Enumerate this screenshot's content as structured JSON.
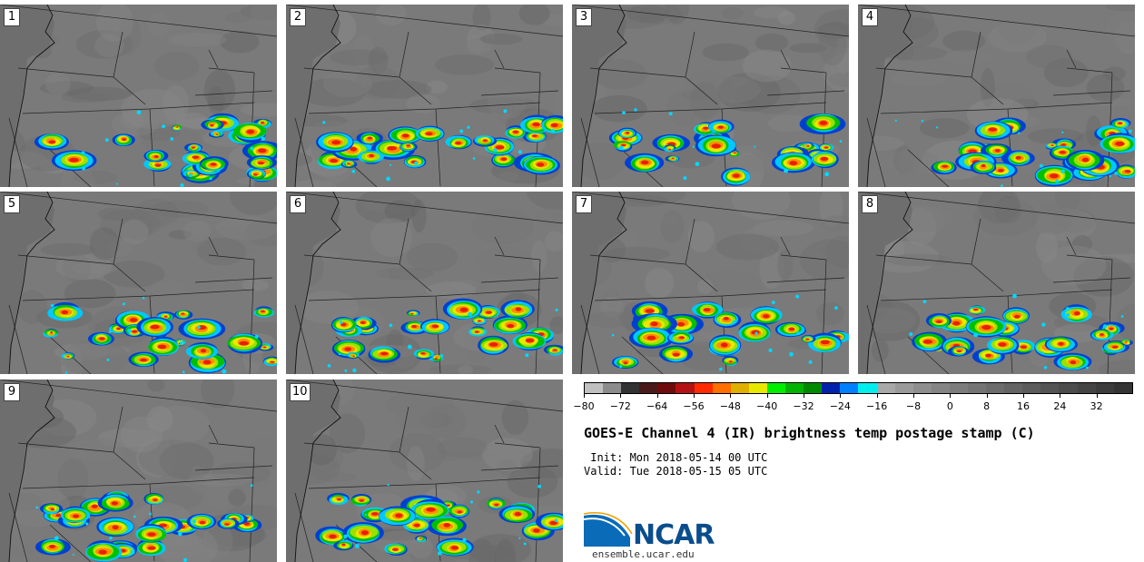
{
  "panels": [
    {
      "label": "1"
    },
    {
      "label": "2"
    },
    {
      "label": "3"
    },
    {
      "label": "4"
    },
    {
      "label": "5"
    },
    {
      "label": "6"
    },
    {
      "label": "7"
    },
    {
      "label": "8"
    },
    {
      "label": "9"
    },
    {
      "label": "10"
    }
  ],
  "colorbar": {
    "colors": [
      "#c0c0c0",
      "#8c8c8c",
      "#323232",
      "#4a1a1a",
      "#6e0c0c",
      "#b41212",
      "#ff2a00",
      "#ff7000",
      "#e0b000",
      "#e8e800",
      "#00ee00",
      "#00b400",
      "#008a00",
      "#0022aa",
      "#0080ff",
      "#00eeee",
      "#a8a8a8",
      "#9a9a9a",
      "#8e8e8e",
      "#848484",
      "#7c7c7c",
      "#747474",
      "#6c6c6c",
      "#646464",
      "#5c5c5c",
      "#545454",
      "#4c4c4c",
      "#444444",
      "#3c3c3c",
      "#343434"
    ],
    "ticks": [
      "−80",
      "−72",
      "−64",
      "−56",
      "−48",
      "−40",
      "−32",
      "−24",
      "−16",
      "−8",
      "0",
      "8",
      "16",
      "24",
      "32"
    ]
  },
  "title": "GOES-E Channel 4 (IR) brightness temp postage stamp (C)",
  "init": " Init: Mon 2018-05-14 00 UTC",
  "valid": "Valid: Tue 2018-05-15 05 UTC",
  "logo_text": "NCAR",
  "site": "ensemble.ucar.edu"
}
